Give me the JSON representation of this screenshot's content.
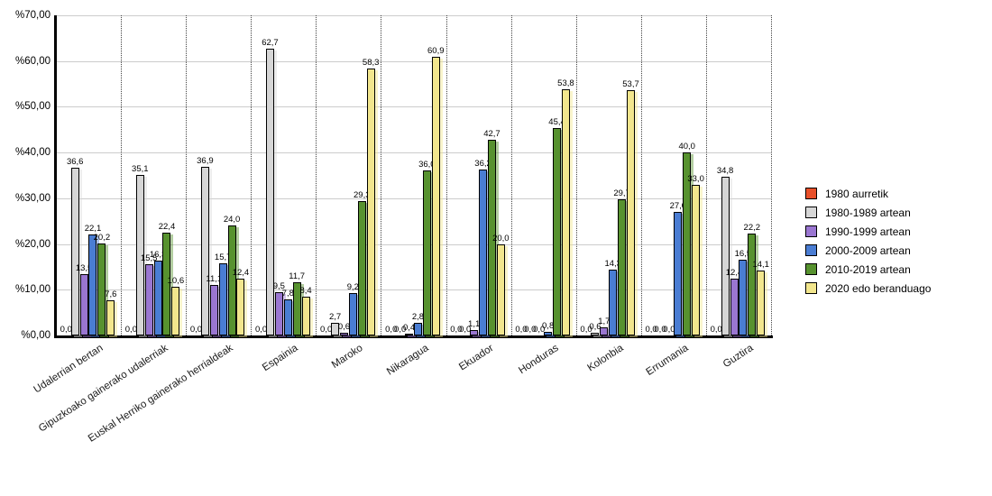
{
  "chart_data": {
    "type": "bar",
    "title": "",
    "xlabel": "",
    "ylabel": "",
    "grid": true,
    "legend_position": "right",
    "value_label_decimal": "comma",
    "yaxis": {
      "min": 0,
      "max": 70,
      "step": 10,
      "tick_labels": [
        "%0,00",
        "%10,00",
        "%20,00",
        "%30,00",
        "%40,00",
        "%50,00",
        "%60,00",
        "%70,00"
      ]
    },
    "categories": [
      "Udalerrian bertan",
      "Gipuzkoako gainerako udalerriak",
      "Euskal Herriko gainerako herrialdeak",
      "Espainia",
      "Maroko",
      "Nikaragua",
      "Ekuador",
      "Honduras",
      "Kolonbia",
      "Errumania",
      "Guztira"
    ],
    "series": [
      {
        "name": "1980 aurretik",
        "color": "#e8502a",
        "values": [
          0.0,
          0.0,
          0.0,
          0.0,
          0.0,
          0.0,
          0.0,
          0.0,
          0.0,
          0.0,
          0.0
        ]
      },
      {
        "name": "1980-1989 artean",
        "color": "#d6d6d6",
        "values": [
          36.6,
          35.1,
          36.9,
          62.7,
          2.7,
          0.0,
          0.0,
          0.0,
          0.6,
          0.0,
          34.8
        ]
      },
      {
        "name": "1990-1999 artean",
        "color": "#9a76d1",
        "values": [
          13.5,
          15.5,
          11.1,
          9.5,
          0.6,
          0.4,
          1.1,
          0.0,
          1.7,
          0.0,
          12.4
        ]
      },
      {
        "name": "2000-2009 artean",
        "color": "#4a7dd3",
        "values": [
          22.1,
          16.3,
          15.7,
          7.8,
          9.2,
          2.8,
          36.2,
          0.8,
          14.3,
          27.0,
          16.5
        ]
      },
      {
        "name": "2010-2019 artean",
        "color": "#57922f",
        "values": [
          20.2,
          22.4,
          24.0,
          11.7,
          29.3,
          36.0,
          42.7,
          45.4,
          29.7,
          40.0,
          22.2
        ]
      },
      {
        "name": "2020 edo beranduago",
        "color": "#f2e68d",
        "values": [
          7.6,
          10.6,
          12.4,
          8.4,
          58.3,
          60.9,
          20.0,
          53.8,
          53.7,
          33.0,
          14.1
        ]
      }
    ]
  }
}
